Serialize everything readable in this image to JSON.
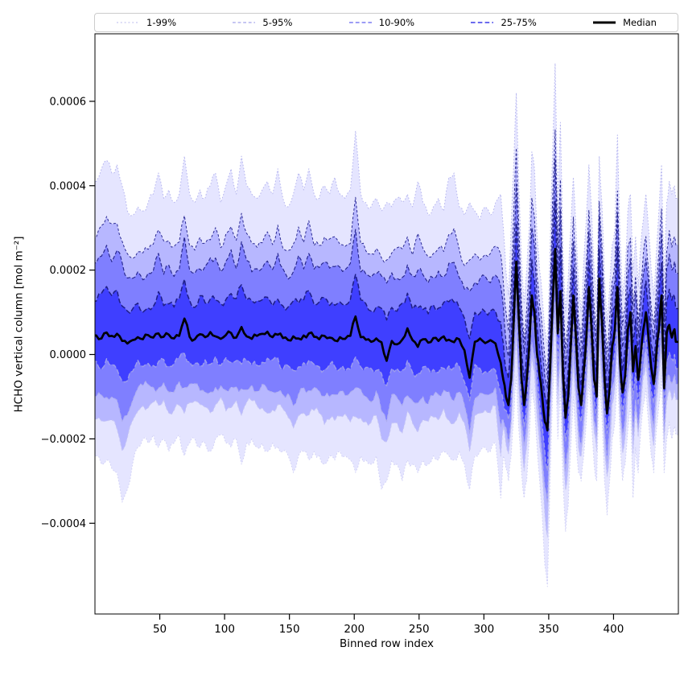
{
  "chart_data": {
    "type": "area",
    "title": "",
    "xlabel": "Binned row index",
    "ylabel": "HCHO vertical column [mol m⁻²]",
    "grid": false,
    "legend_position": "top-outside",
    "x_domain": [
      0,
      450
    ],
    "y_domain": [
      -0.000615,
      0.00076
    ],
    "unit": 1e-05,
    "xticks": {
      "labels": [
        "50",
        "100",
        "150",
        "200",
        "250",
        "300",
        "350",
        "400"
      ],
      "values": [
        50,
        100,
        150,
        200,
        250,
        300,
        350,
        400
      ]
    },
    "yticks": {
      "labels": [
        "0.0006",
        "0.0004",
        "0.0002",
        "0.0000",
        "−0.0002",
        "−0.0004"
      ],
      "values": [
        0.0006,
        0.0004,
        0.0002,
        0.0,
        -0.0002,
        -0.0004
      ]
    },
    "legend": {
      "entries": [
        {
          "label": "1-99%",
          "color": "#c8c8f0",
          "dash": "2 2.8",
          "width": 1.2
        },
        {
          "label": "5-95%",
          "color": "#a4a4ea",
          "dash": "3.8 2.8",
          "width": 1.2
        },
        {
          "label": "10-90%",
          "color": "#7b7bf2",
          "dash": "4.8 3",
          "width": 1.4
        },
        {
          "label": "25-75%",
          "color": "#6a6aee",
          "dash": "5.6 3.2",
          "width": 1.9
        },
        {
          "label": "Median",
          "color": "#000000",
          "dash": "",
          "width": 3
        }
      ]
    },
    "percentile_fractions": {
      "f95": 0.66,
      "f90": 0.48,
      "f75": 0.24
    },
    "x": [
      1,
      5,
      9,
      13,
      17,
      21,
      25,
      29,
      33,
      37,
      41,
      45,
      49,
      53,
      57,
      61,
      65,
      69,
      73,
      77,
      81,
      85,
      89,
      93,
      97,
      101,
      105,
      109,
      113,
      117,
      121,
      125,
      129,
      133,
      137,
      141,
      145,
      149,
      153,
      157,
      161,
      165,
      169,
      173,
      177,
      181,
      185,
      189,
      193,
      197,
      201,
      205,
      209,
      213,
      217,
      221,
      225,
      229,
      233,
      237,
      241,
      245,
      249,
      253,
      257,
      261,
      265,
      269,
      273,
      277,
      281,
      285,
      289,
      293,
      297,
      301,
      305,
      309,
      313,
      315,
      317,
      319,
      321,
      323,
      325,
      327,
      329,
      331,
      333,
      335,
      337,
      339,
      341,
      343,
      345,
      347,
      349,
      351,
      353,
      355,
      357,
      359,
      361,
      363,
      365,
      367,
      369,
      371,
      373,
      375,
      377,
      379,
      381,
      383,
      385,
      387,
      389,
      391,
      393,
      395,
      397,
      399,
      401,
      403,
      405,
      407,
      409,
      411,
      413,
      415,
      417,
      419,
      421,
      423,
      425,
      427,
      429,
      431,
      433,
      435,
      437,
      439,
      441,
      443,
      445,
      447,
      448
    ],
    "series": {
      "p99": [
        41,
        44,
        46,
        43,
        45,
        40,
        34,
        33,
        35,
        34,
        36,
        38,
        43,
        37,
        39,
        36,
        38,
        47,
        38,
        36,
        39,
        37,
        40,
        43,
        36,
        40,
        44,
        38,
        47,
        40,
        38,
        37,
        39,
        41,
        38,
        44,
        37,
        35,
        38,
        43,
        39,
        44,
        38,
        37,
        40,
        38,
        42,
        38,
        37,
        39,
        53,
        38,
        36,
        35,
        37,
        34,
        36,
        35,
        37,
        36,
        38,
        35,
        41,
        36,
        33,
        35,
        37,
        34,
        42,
        43,
        35,
        33,
        36,
        34,
        32,
        35,
        33,
        36,
        38,
        30,
        20,
        14,
        30,
        45,
        62,
        40,
        22,
        12,
        20,
        30,
        48,
        44,
        28,
        20,
        14,
        6,
        2,
        25,
        48,
        69,
        35,
        55,
        25,
        10,
        18,
        30,
        42,
        30,
        16,
        10,
        22,
        32,
        45,
        34,
        20,
        12,
        47,
        36,
        18,
        8,
        16,
        26,
        30,
        52,
        28,
        14,
        20,
        34,
        38,
        20,
        28,
        16,
        26,
        32,
        38,
        30,
        20,
        14,
        24,
        34,
        45,
        18,
        36,
        41,
        38,
        40,
        37
      ],
      "median": [
        4.5,
        3.8,
        5.2,
        4.4,
        4.9,
        3.2,
        2.6,
        3.4,
        4.1,
        3.6,
        4.6,
        4,
        5,
        4.2,
        4.7,
        3.8,
        4.4,
        8.5,
        4.2,
        3.6,
        4.8,
        4.1,
        5.3,
        4.3,
        3.7,
        4.6,
        5.1,
        4,
        6.5,
        4.3,
        3.7,
        4.4,
        4.9,
        5.4,
        4.1,
        4.7,
        3.9,
        3.4,
        4.3,
        3.8,
        4.5,
        5,
        4.2,
        3.6,
        4.4,
        4,
        3.3,
        4.1,
        3.7,
        4.4,
        9,
        4.1,
        3.5,
        3,
        3.8,
        2.9,
        -1.5,
        3.2,
        2.4,
        3.5,
        6.2,
        3.4,
        1.8,
        3.6,
        2.8,
        3.9,
        3.2,
        4.3,
        3.5,
        2.9,
        3.6,
        1,
        -5.5,
        3,
        3.8,
        2.7,
        3.4,
        2.6,
        -2,
        -6,
        -10,
        -12,
        -6,
        8,
        22,
        8,
        -6,
        -12,
        -6,
        2,
        14,
        10,
        0,
        -5,
        -10,
        -16,
        -18,
        -4,
        12,
        25,
        5,
        15,
        -5,
        -15,
        -10,
        2,
        14,
        4,
        -8,
        -12,
        -4,
        4,
        16,
        6,
        -6,
        -10,
        18,
        8,
        -6,
        -14,
        -8,
        2,
        6,
        16,
        -2,
        -9,
        -5,
        6,
        10,
        -4,
        2,
        -6,
        0,
        6,
        10,
        4,
        -3,
        -7,
        0,
        6,
        14,
        -8,
        5,
        7,
        4,
        6,
        3
      ],
      "p01": [
        -24,
        -26,
        -25,
        -27,
        -28,
        -35,
        -32,
        -26,
        -22,
        -20,
        -21,
        -19,
        -22,
        -20,
        -23,
        -21,
        -19,
        -24,
        -21,
        -20,
        -22,
        -21,
        -23,
        -20,
        -19,
        -21,
        -22,
        -20,
        -26,
        -21,
        -20,
        -22,
        -21,
        -23,
        -21,
        -22,
        -23,
        -24,
        -28,
        -24,
        -23,
        -25,
        -23,
        -24,
        -26,
        -24,
        -25,
        -23,
        -24,
        -25,
        -28,
        -24,
        -25,
        -26,
        -24,
        -32,
        -30,
        -25,
        -26,
        -30,
        -25,
        -26,
        -28,
        -25,
        -26,
        -24,
        -25,
        -23,
        -24,
        -25,
        -23,
        -26,
        -32,
        -24,
        -23,
        -22,
        -23,
        -21,
        -34,
        -24,
        -27,
        -30,
        -24,
        -15,
        -5,
        -18,
        -28,
        -34,
        -30,
        -20,
        -8,
        -12,
        -22,
        -30,
        -38,
        -50,
        -55,
        -30,
        -10,
        0,
        -20,
        -8,
        -30,
        -42,
        -36,
        -22,
        -10,
        -20,
        -28,
        -30,
        -24,
        -16,
        -6,
        -16,
        -26,
        -30,
        -5,
        -14,
        -30,
        -38,
        -30,
        -20,
        -16,
        -4,
        -20,
        -30,
        -26,
        -18,
        -12,
        -34,
        -22,
        -28,
        -18,
        -12,
        -8,
        -16,
        -24,
        -28,
        -18,
        -12,
        -5,
        -28,
        -20,
        -16,
        -20,
        -17,
        -19
      ]
    },
    "style": {
      "band_fill": "#0000ff",
      "bands": [
        {
          "name": "1-99",
          "upper": "p99",
          "lower": "p01",
          "opacity": 0.1
        },
        {
          "name": "5-95",
          "upper": "p95",
          "lower": "p05",
          "opacity": 0.2
        },
        {
          "name": "10-90",
          "upper": "p90",
          "lower": "p10",
          "opacity": 0.3
        },
        {
          "name": "25-75",
          "upper": "p75",
          "lower": "p25",
          "opacity": 0.5
        }
      ],
      "edges": [
        {
          "series": "p01",
          "color": "#cfcff5",
          "dash": "1.6 2.3",
          "width": 1
        },
        {
          "series": "p05",
          "color": "#c6c6f3",
          "dash": "3 2.4",
          "width": 1
        },
        {
          "series": "p10",
          "color": "#adadee",
          "dash": "4.5 2.5",
          "width": 1.1
        },
        {
          "series": "p25",
          "color": "#9d9dec",
          "dash": "6 2.8",
          "width": 1.4
        },
        {
          "series": "p99",
          "color": "#b4b4ee",
          "dash": "1.6 2.3",
          "width": 1
        },
        {
          "series": "p95",
          "color": "#2b2b94",
          "dash": "3 2.4",
          "width": 1
        },
        {
          "series": "p90",
          "color": "#26268d",
          "dash": "4.5 2.5",
          "width": 1.15
        },
        {
          "series": "p75",
          "color": "#1e1e86",
          "dash": "6 2.8",
          "width": 1.5
        },
        {
          "series": "median",
          "color": "#000000",
          "dash": "",
          "width": 2.7
        }
      ]
    }
  }
}
